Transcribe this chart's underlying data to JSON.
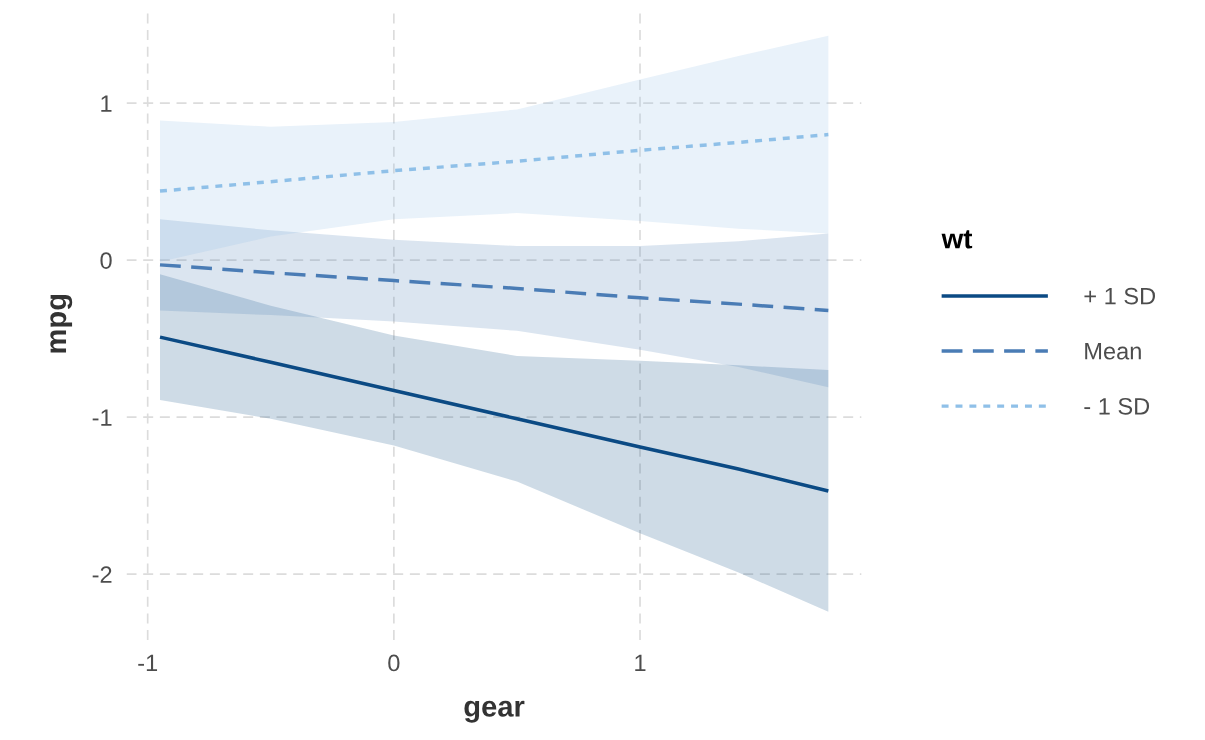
{
  "chart_data": {
    "type": "line",
    "xlabel": "gear",
    "ylabel": "mpg",
    "legend_title": "wt",
    "x": [
      -0.95,
      -0.5,
      0,
      0.5,
      1,
      1.4,
      1.765
    ],
    "series": [
      {
        "name": "+ 1 SD",
        "color": "#0b4a84",
        "line_style": "solid",
        "values": [
          -0.49,
          -0.65,
          -0.83,
          -1.01,
          -1.19,
          -1.33,
          -1.47
        ],
        "lower": [
          -0.89,
          -1.01,
          -1.18,
          -1.41,
          -1.74,
          -1.99,
          -2.24
        ],
        "upper": [
          -0.09,
          -0.29,
          -0.48,
          -0.61,
          -0.64,
          -0.67,
          -0.7
        ]
      },
      {
        "name": "Mean",
        "color": "#4a7cb5",
        "line_style": "dashed",
        "values": [
          -0.03,
          -0.08,
          -0.13,
          -0.18,
          -0.24,
          -0.28,
          -0.32
        ],
        "lower": [
          -0.32,
          -0.35,
          -0.39,
          -0.45,
          -0.57,
          -0.68,
          -0.81
        ],
        "upper": [
          0.26,
          0.19,
          0.13,
          0.09,
          0.09,
          0.12,
          0.17
        ]
      },
      {
        "name": "- 1 SD",
        "color": "#8fc0e8",
        "line_style": "dotted",
        "values": [
          0.44,
          0.5,
          0.57,
          0.63,
          0.7,
          0.75,
          0.8
        ],
        "lower": [
          -0.01,
          0.15,
          0.26,
          0.3,
          0.25,
          0.2,
          0.17
        ],
        "upper": [
          0.89,
          0.85,
          0.88,
          0.96,
          1.15,
          1.3,
          1.43
        ]
      }
    ],
    "xlim": [
      -1.086,
      1.9
    ],
    "xticks": [
      -1,
      0,
      1
    ],
    "ylim": [
      -2.42,
      1.61
    ],
    "yticks": [
      -2,
      -1,
      0,
      1
    ],
    "grid": true,
    "legend": "right",
    "marker": "none"
  }
}
